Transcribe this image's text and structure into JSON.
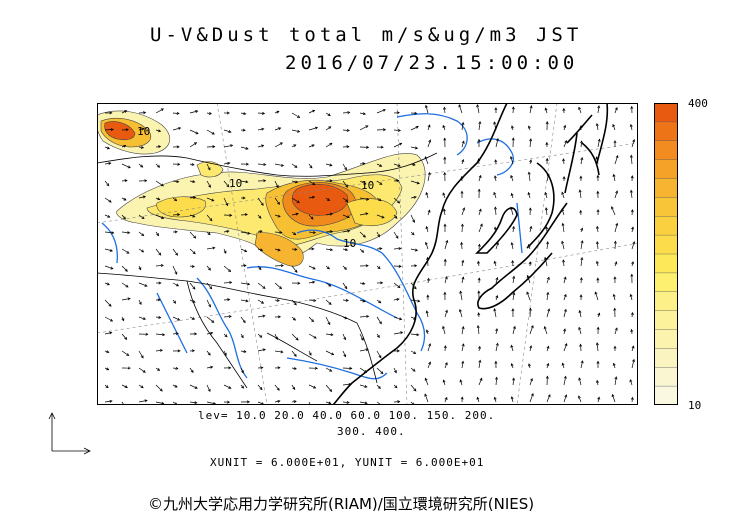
{
  "title": {
    "line1": "U-V&Dust total m/s&ug/m3 JST",
    "line2": "2016/07/23.15:00:00"
  },
  "colorbar": {
    "max_label": "400",
    "min_label": "10",
    "colors": [
      "#e85a10",
      "#ee7418",
      "#f28c20",
      "#f4a228",
      "#f6b430",
      "#f8c438",
      "#fad040",
      "#fcdc4a",
      "#fde85a",
      "#fdf070",
      "#fdf088",
      "#fcf29c",
      "#fbf3ae",
      "#faf4c0",
      "#faf6d2",
      "#fbf8e2"
    ]
  },
  "footer": {
    "lev_line1": "lev= 10.0 20.0 40.0 60.0 100. 150. 200.",
    "lev_line2": "300. 400.",
    "units": "XUNIT = 6.000E+01, YUNIT = 6.000E+01",
    "credit": "©九州大学応用力学研究所(RIAM)/国立環境研究所(NIES)"
  },
  "map_labels": {
    "contour_a": "10",
    "contour_b": "10",
    "contour_c": "10",
    "contour_d": "10"
  },
  "colors": {
    "coast": "#000000",
    "river": "#1e6fe0",
    "grid": "#888888"
  }
}
